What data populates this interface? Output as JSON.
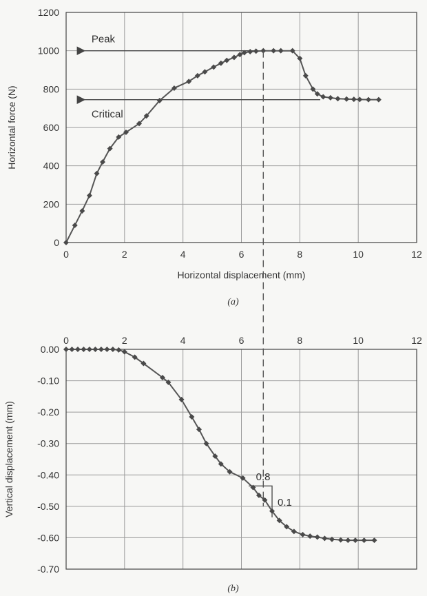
{
  "chart_data": [
    {
      "id": "a",
      "type": "line",
      "caption": "(a)",
      "xlabel": "Horizontal displacement (mm)",
      "ylabel": "Horizontal force (N)",
      "xlim": [
        0,
        12
      ],
      "ylim": [
        0,
        1200
      ],
      "xticks": [
        0,
        2,
        4,
        6,
        8,
        10,
        12
      ],
      "yticks": [
        0,
        200,
        400,
        600,
        800,
        1000,
        1200
      ],
      "grid": true,
      "series": [
        {
          "points": [
            [
              0,
              0
            ],
            [
              0.3,
              90
            ],
            [
              0.55,
              165
            ],
            [
              0.8,
              245
            ],
            [
              1.05,
              360
            ],
            [
              1.25,
              420
            ],
            [
              1.5,
              490
            ],
            [
              1.8,
              550
            ],
            [
              2.05,
              575
            ],
            [
              2.5,
              620
            ],
            [
              2.75,
              660
            ],
            [
              3.2,
              740
            ],
            [
              3.7,
              805
            ],
            [
              4.2,
              840
            ],
            [
              4.5,
              870
            ],
            [
              4.75,
              890
            ],
            [
              5.05,
              915
            ],
            [
              5.3,
              935
            ],
            [
              5.5,
              950
            ],
            [
              5.75,
              965
            ],
            [
              5.95,
              980
            ],
            [
              6.1,
              990
            ],
            [
              6.3,
              995
            ],
            [
              6.5,
              998
            ],
            [
              6.75,
              1000
            ],
            [
              7.1,
              1000
            ],
            [
              7.35,
              1000
            ],
            [
              7.75,
              1000
            ],
            [
              8.0,
              960
            ],
            [
              8.2,
              870
            ],
            [
              8.45,
              800
            ],
            [
              8.6,
              775
            ],
            [
              8.8,
              760
            ],
            [
              9.05,
              755
            ],
            [
              9.3,
              750
            ],
            [
              9.6,
              748
            ],
            [
              9.85,
              747
            ],
            [
              10.05,
              746
            ],
            [
              10.35,
              745
            ],
            [
              10.7,
              745
            ]
          ]
        }
      ],
      "annotations": [
        {
          "text": "Peak",
          "y": 1000,
          "x_start": 7.75,
          "x_end": 0.35
        },
        {
          "text": "Critical",
          "y": 745,
          "x_start": 8.7,
          "x_end": 0.35
        }
      ]
    },
    {
      "id": "b",
      "type": "line",
      "caption": "(b)",
      "xlabel": "",
      "ylabel": "Vertical displacement (mm)",
      "xlim": [
        0,
        12
      ],
      "ylim": [
        -0.7,
        0
      ],
      "xticks": [
        0,
        2,
        4,
        6,
        8,
        10,
        12
      ],
      "yticks": [
        0,
        -0.1,
        -0.2,
        -0.3,
        -0.4,
        -0.5,
        -0.6,
        -0.7
      ],
      "ytick_labels": [
        "0.00",
        "-0.10",
        "-0.20",
        "-0.30",
        "-0.40",
        "-0.50",
        "-0.60",
        "-0.70"
      ],
      "grid": true,
      "series": [
        {
          "points": [
            [
              0,
              0
            ],
            [
              0.2,
              0
            ],
            [
              0.4,
              0
            ],
            [
              0.6,
              0
            ],
            [
              0.8,
              0
            ],
            [
              1.0,
              0
            ],
            [
              1.2,
              0
            ],
            [
              1.4,
              0
            ],
            [
              1.6,
              0
            ],
            [
              1.8,
              -0.002
            ],
            [
              2.0,
              -0.008
            ],
            [
              2.35,
              -0.025
            ],
            [
              2.65,
              -0.045
            ],
            [
              3.3,
              -0.09
            ],
            [
              3.5,
              -0.105
            ],
            [
              3.95,
              -0.16
            ],
            [
              4.3,
              -0.215
            ],
            [
              4.55,
              -0.255
            ],
            [
              4.8,
              -0.3
            ],
            [
              5.1,
              -0.34
            ],
            [
              5.3,
              -0.365
            ],
            [
              5.6,
              -0.39
            ],
            [
              6.05,
              -0.41
            ],
            [
              6.4,
              -0.44
            ],
            [
              6.6,
              -0.465
            ],
            [
              6.8,
              -0.48
            ],
            [
              7.05,
              -0.515
            ],
            [
              7.3,
              -0.545
            ],
            [
              7.55,
              -0.565
            ],
            [
              7.8,
              -0.58
            ],
            [
              8.1,
              -0.59
            ],
            [
              8.35,
              -0.595
            ],
            [
              8.6,
              -0.598
            ],
            [
              8.85,
              -0.602
            ],
            [
              9.1,
              -0.605
            ],
            [
              9.4,
              -0.607
            ],
            [
              9.65,
              -0.608
            ],
            [
              9.9,
              -0.608
            ],
            [
              10.2,
              -0.608
            ],
            [
              10.55,
              -0.608
            ]
          ]
        }
      ],
      "slope_triangle": {
        "horizontal_label": "0.8",
        "vertical_label": "0.1",
        "x0": 6.25,
        "x1": 7.05,
        "y0": -0.435,
        "y1": -0.535
      }
    }
  ],
  "reference_line": {
    "x": 6.75
  }
}
